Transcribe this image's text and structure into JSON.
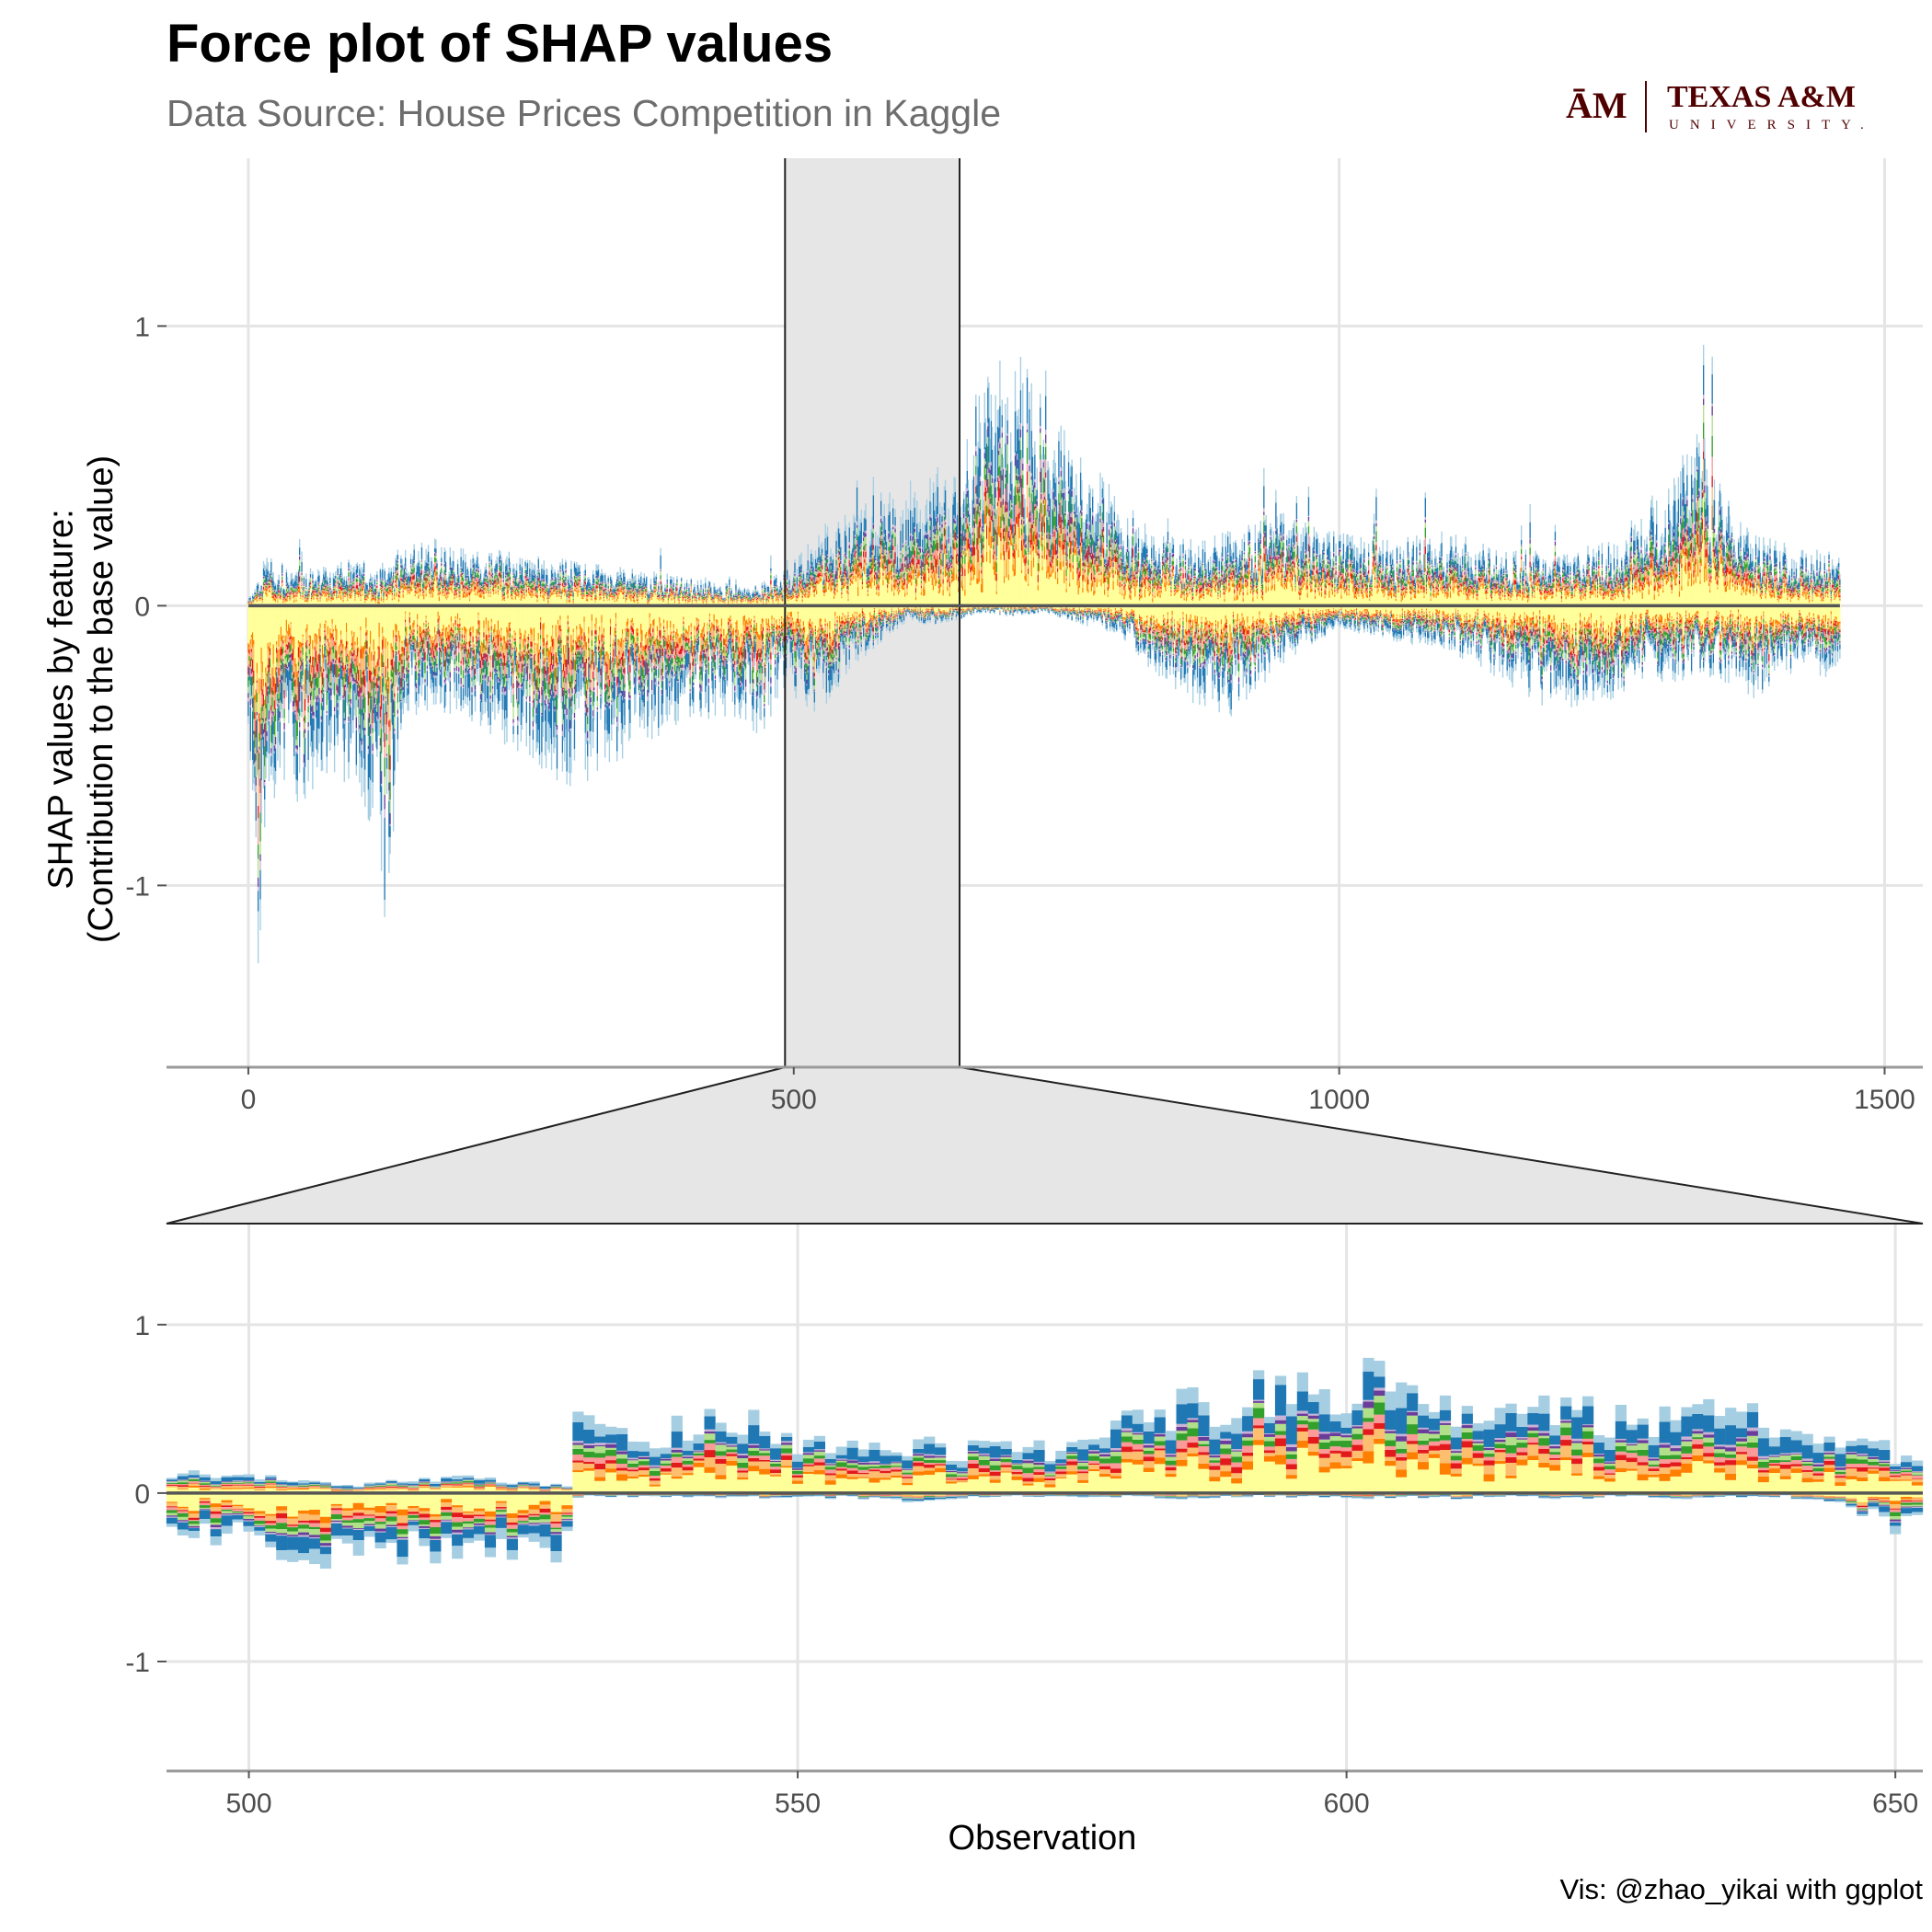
{
  "title": "Force plot of SHAP values",
  "subtitle": "Data Source: House Prices Competition in Kaggle",
  "caption": "Vis: @zhao_yikai with ggplot",
  "logo": {
    "mark": "ĀM",
    "name": "TEXAS A&M",
    "sub": "UNIVERSITY."
  },
  "colors": {
    "palette": [
      "#ffff99",
      "#ff7f00",
      "#fdbf6f",
      "#e31a1c",
      "#fb9a99",
      "#33a02c",
      "#b2df8a",
      "#6a3d9a",
      "#cab2d6",
      "#1f78b4",
      "#a6cee3"
    ],
    "zero_line": "#555555",
    "grid": "#e5e5e5",
    "zoom_fill": "#e6e6e6",
    "logo": "#500000"
  },
  "chart_data": [
    {
      "type": "area",
      "name": "overview",
      "stacked": true,
      "xlabel": "",
      "ylabel": "SHAP values by feature:\n(Contribution to the base value)",
      "xlim": [
        -75,
        1535
      ],
      "ylim": [
        -1.65,
        1.6
      ],
      "xticks": [
        0,
        500,
        1000,
        1500
      ],
      "yticks": [
        -1,
        0,
        1
      ],
      "grid": true,
      "highlight_range": [
        492,
        652
      ],
      "profile": {
        "x": [
          0,
          5,
          10,
          20,
          30,
          40,
          60,
          80,
          100,
          115,
          125,
          140,
          170,
          200,
          250,
          300,
          350,
          400,
          440,
          470,
          492,
          520,
          560,
          600,
          630,
          650,
          670,
          700,
          730,
          760,
          800,
          830,
          860,
          900,
          950,
          1000,
          1050,
          1100,
          1150,
          1200,
          1250,
          1280,
          1300,
          1330,
          1350,
          1380,
          1420,
          1459
        ],
        "pos": [
          0.02,
          0.05,
          0.08,
          0.15,
          0.12,
          0.1,
          0.1,
          0.12,
          0.14,
          0.1,
          0.12,
          0.16,
          0.18,
          0.16,
          0.14,
          0.12,
          0.1,
          0.08,
          0.06,
          0.06,
          0.1,
          0.2,
          0.28,
          0.32,
          0.38,
          0.35,
          0.6,
          0.7,
          0.55,
          0.42,
          0.3,
          0.22,
          0.18,
          0.2,
          0.25,
          0.2,
          0.18,
          0.2,
          0.16,
          0.14,
          0.18,
          0.28,
          0.32,
          0.48,
          0.34,
          0.2,
          0.16,
          0.14
        ],
        "neg": [
          -0.45,
          -0.9,
          -1.15,
          -0.6,
          -0.5,
          -0.55,
          -0.5,
          -0.45,
          -0.5,
          -0.6,
          -0.9,
          -0.35,
          -0.28,
          -0.3,
          -0.4,
          -0.5,
          -0.4,
          -0.3,
          -0.3,
          -0.35,
          -0.22,
          -0.3,
          -0.15,
          -0.05,
          -0.05,
          -0.04,
          -0.02,
          -0.03,
          -0.02,
          -0.05,
          -0.08,
          -0.18,
          -0.25,
          -0.3,
          -0.15,
          -0.06,
          -0.1,
          -0.12,
          -0.2,
          -0.3,
          -0.25,
          -0.2,
          -0.22,
          -0.18,
          -0.2,
          -0.25,
          -0.18,
          -0.2
        ]
      }
    },
    {
      "type": "area",
      "name": "zoom",
      "stacked": true,
      "xlabel": "Observation",
      "ylabel": "",
      "xlim": [
        492.5,
        652.5
      ],
      "ylim": [
        -1.65,
        1.6
      ],
      "xticks": [
        500,
        550,
        600,
        650
      ],
      "yticks": [
        -1,
        0,
        1
      ],
      "grid": true,
      "profile": {
        "x": [
          492,
          500,
          510,
          515,
          520,
          525,
          529,
          530,
          535,
          540,
          545,
          550,
          555,
          560,
          570,
          578,
          580,
          585,
          590,
          595,
          600,
          605,
          610,
          615,
          620,
          625,
          630,
          635,
          640,
          645,
          650,
          652
        ],
        "pos": [
          0.12,
          0.1,
          0.05,
          0.08,
          0.1,
          0.06,
          0.05,
          0.42,
          0.35,
          0.4,
          0.42,
          0.32,
          0.26,
          0.28,
          0.25,
          0.28,
          0.45,
          0.5,
          0.58,
          0.6,
          0.64,
          0.65,
          0.56,
          0.5,
          0.52,
          0.42,
          0.45,
          0.5,
          0.44,
          0.34,
          0.24,
          0.2
        ],
        "neg": [
          -0.18,
          -0.28,
          -0.38,
          -0.3,
          -0.3,
          -0.28,
          -0.36,
          -0.02,
          -0.02,
          -0.02,
          -0.03,
          -0.02,
          -0.03,
          -0.04,
          -0.02,
          -0.02,
          -0.02,
          -0.03,
          -0.02,
          -0.02,
          -0.03,
          -0.02,
          -0.03,
          -0.02,
          -0.03,
          -0.02,
          -0.03,
          -0.02,
          -0.02,
          -0.05,
          -0.2,
          -0.12
        ]
      }
    }
  ]
}
